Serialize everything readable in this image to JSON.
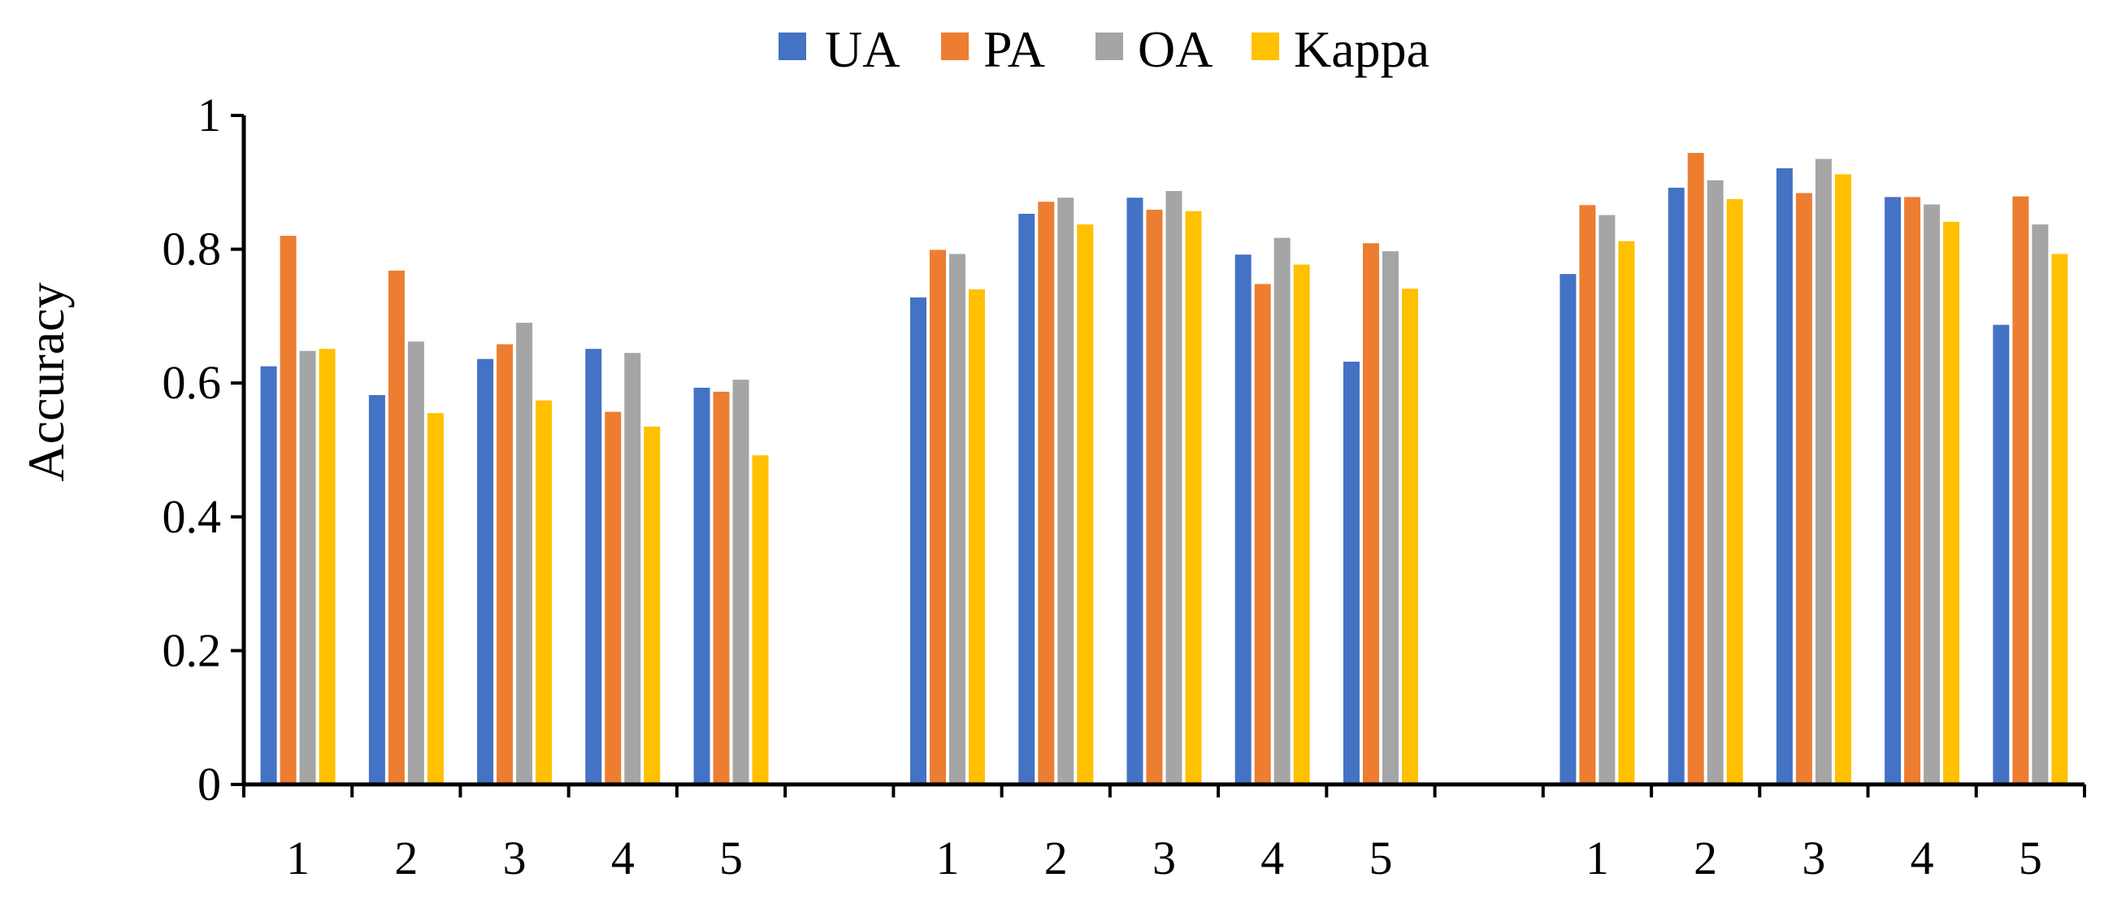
{
  "chart_data": {
    "type": "bar",
    "title": "",
    "xlabel": "",
    "ylabel": "Accuracy",
    "ylim": [
      0,
      1
    ],
    "yticks": [
      0,
      0.2,
      0.4,
      0.6,
      0.8,
      1
    ],
    "ytick_labels": [
      "0",
      "0.2",
      "0.4",
      "0.6",
      "0.8",
      "1"
    ],
    "legend_position": "top",
    "grid": false,
    "categories": [
      "1",
      "2",
      "3",
      "4",
      "5",
      "",
      "1",
      "2",
      "3",
      "4",
      "5",
      "",
      "1",
      "2",
      "3",
      "4",
      "5"
    ],
    "series": [
      {
        "name": "UA",
        "color": "#4472C4",
        "values": [
          0.625,
          0.582,
          0.636,
          0.651,
          0.593,
          null,
          0.728,
          0.853,
          0.877,
          0.792,
          0.632,
          null,
          0.763,
          0.892,
          0.921,
          0.878,
          0.687
        ]
      },
      {
        "name": "PA",
        "color": "#ED7D31",
        "values": [
          0.82,
          0.768,
          0.658,
          0.557,
          0.587,
          null,
          0.799,
          0.871,
          0.859,
          0.748,
          0.809,
          null,
          0.866,
          0.944,
          0.884,
          0.878,
          0.879
        ]
      },
      {
        "name": "OA",
        "color": "#A5A5A5",
        "values": [
          0.648,
          0.662,
          0.69,
          0.645,
          0.605,
          null,
          0.793,
          0.877,
          0.887,
          0.817,
          0.797,
          null,
          0.851,
          0.903,
          0.935,
          0.867,
          0.837
        ]
      },
      {
        "name": "Kappa",
        "color": "#FFC000",
        "values": [
          0.651,
          0.555,
          0.574,
          0.535,
          0.492,
          null,
          0.74,
          0.837,
          0.857,
          0.777,
          0.741,
          null,
          0.812,
          0.875,
          0.912,
          0.841,
          0.793
        ]
      }
    ]
  }
}
